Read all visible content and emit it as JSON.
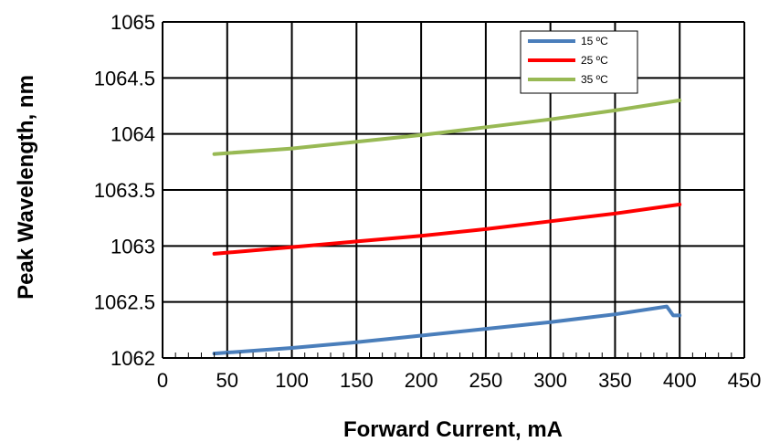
{
  "chart_data": {
    "type": "line",
    "title": "",
    "xlabel": "Forward Current, mA",
    "ylabel": "Peak Wavelength, nm",
    "xlim": [
      0,
      450
    ],
    "ylim": [
      1062,
      1065
    ],
    "x_ticks": [
      0,
      50,
      100,
      150,
      200,
      250,
      300,
      350,
      400,
      450
    ],
    "x_tick_labels": [
      "0",
      "50",
      "100",
      "150",
      "200",
      "250",
      "300",
      "350",
      "400",
      "450"
    ],
    "y_ticks": [
      1062,
      1062.5,
      1063,
      1063.5,
      1064,
      1064.5,
      1065
    ],
    "y_tick_labels": [
      "1062",
      "1062.5",
      "1063",
      "1063.5",
      "1064",
      "1064.5",
      "1065"
    ],
    "grid": true,
    "legend_position": "top-right",
    "series": [
      {
        "name": "15 ºC",
        "color": "#4a7ebb",
        "x": [
          40,
          100,
          150,
          200,
          250,
          300,
          350,
          390,
          395,
          400
        ],
        "y": [
          1062.04,
          1062.09,
          1062.14,
          1062.2,
          1062.26,
          1062.32,
          1062.39,
          1062.46,
          1062.38,
          1062.38
        ]
      },
      {
        "name": "25 ºC",
        "color": "#ff0000",
        "x": [
          40,
          100,
          150,
          200,
          250,
          300,
          350,
          400
        ],
        "y": [
          1062.93,
          1062.99,
          1063.04,
          1063.09,
          1063.15,
          1063.22,
          1063.29,
          1063.37
        ]
      },
      {
        "name": "35 ºC",
        "color": "#98b954",
        "x": [
          40,
          100,
          150,
          200,
          250,
          300,
          350,
          400
        ],
        "y": [
          1063.82,
          1063.87,
          1063.93,
          1063.99,
          1064.06,
          1064.13,
          1064.21,
          1064.3
        ]
      }
    ]
  }
}
